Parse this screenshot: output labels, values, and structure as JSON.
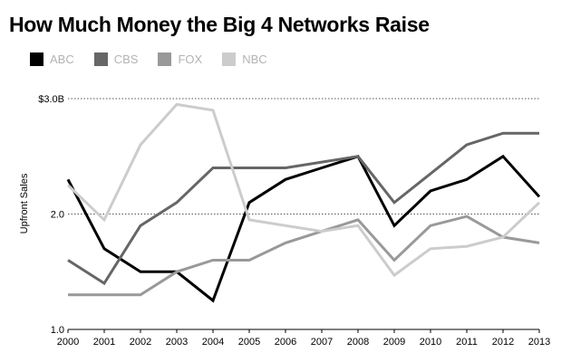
{
  "chart_data": {
    "type": "line",
    "title": "How Much Money the Big 4 Networks Raise",
    "xlabel": "",
    "ylabel": "Upfront Sales",
    "ylim": [
      1.0,
      3.0
    ],
    "y_ticks": [
      1.0,
      2.0,
      3.0
    ],
    "y_tick_labels": [
      "1.0",
      "2.0",
      "$3.0B"
    ],
    "grid": "dotted at 2.0 and 3.0",
    "legend_position": "top-left",
    "x": [
      2000,
      2001,
      2002,
      2003,
      2004,
      2005,
      2006,
      2007,
      2008,
      2009,
      2010,
      2011,
      2012,
      2013
    ],
    "x_tick_labels": [
      "2000",
      "2001",
      "2002",
      "2003",
      "2004",
      "2005",
      "2006",
      "2007",
      "2008",
      "2009",
      "2010",
      "2011",
      "2012",
      "2013"
    ],
    "series": [
      {
        "name": "ABC",
        "color": "#000000",
        "values": [
          2.3,
          1.7,
          1.5,
          1.5,
          1.25,
          2.1,
          2.3,
          2.4,
          2.5,
          1.9,
          2.2,
          2.3,
          2.5,
          2.15
        ]
      },
      {
        "name": "CBS",
        "color": "#666666",
        "values": [
          1.6,
          1.4,
          1.9,
          2.1,
          2.4,
          2.4,
          2.4,
          2.45,
          2.5,
          2.1,
          2.35,
          2.6,
          2.7,
          2.7
        ]
      },
      {
        "name": "FOX",
        "color": "#999999",
        "values": [
          1.3,
          1.3,
          1.3,
          1.5,
          1.6,
          1.6,
          1.75,
          1.85,
          1.95,
          1.6,
          1.9,
          1.98,
          1.8,
          1.75
        ]
      },
      {
        "name": "NBC",
        "color": "#cccccc",
        "values": [
          2.25,
          1.95,
          2.6,
          2.95,
          2.9,
          1.95,
          1.9,
          1.85,
          1.9,
          1.47,
          1.7,
          1.72,
          1.8,
          2.1
        ]
      }
    ]
  }
}
